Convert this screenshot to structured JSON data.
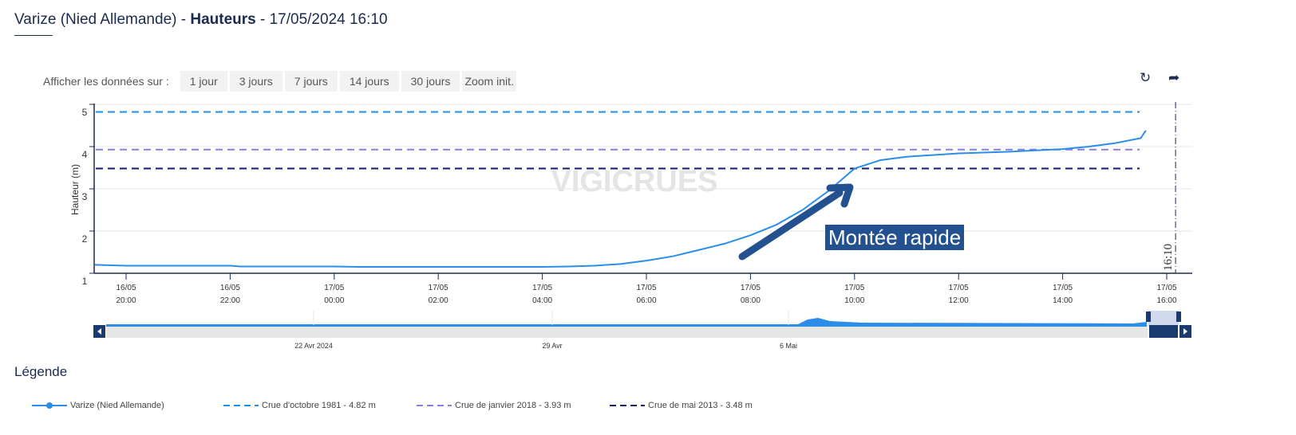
{
  "header": {
    "station": "Varize (Nied Allemande) -",
    "metric": "Hauteurs",
    "datetime": "- 17/05/2024 16:10"
  },
  "range": {
    "label": "Afficher les données sur :",
    "buttons": [
      "1 jour",
      "3 jours",
      "7 jours",
      "14 jours",
      "30 jours",
      "Zoom init."
    ]
  },
  "toolbar": {
    "refresh_icon": "refresh-icon",
    "share_icon": "share-arrow-icon"
  },
  "annotation": "Montée rapide",
  "watermark": "VIGICRUES",
  "legend": {
    "title": "Légende",
    "items": [
      "Varize (Nied Allemande)",
      "Crue d'octobre 1981 - 4.82 m",
      "Crue de janvier 2018 - 3.93 m",
      "Crue de mai 2013 - 3.48 m"
    ]
  },
  "navigator": {
    "labels": [
      "22 Avr 2024",
      "29 Avr",
      "6 Mai"
    ]
  },
  "colors": {
    "series": "#2a8ee8",
    "c1981": "#1e90e8",
    "c2018": "#8a7fe0",
    "c2013": "#14186e",
    "axis": "#1b2a4e"
  },
  "chart_data": {
    "type": "line",
    "ylabel": "Hauteur (m)",
    "ylim": [
      1,
      5
    ],
    "yticks": [
      "1",
      "2",
      "3",
      "4",
      "5"
    ],
    "xticks": [
      {
        "h": 20,
        "l1": "16/05",
        "l2": "20:00"
      },
      {
        "h": 22,
        "l1": "16/05",
        "l2": "22:00"
      },
      {
        "h": 24,
        "l1": "17/05",
        "l2": "00:00"
      },
      {
        "h": 26,
        "l1": "17/05",
        "l2": "02:00"
      },
      {
        "h": 28,
        "l1": "17/05",
        "l2": "04:00"
      },
      {
        "h": 30,
        "l1": "17/05",
        "l2": "06:00"
      },
      {
        "h": 32,
        "l1": "17/05",
        "l2": "08:00"
      },
      {
        "h": 34,
        "l1": "17/05",
        "l2": "10:00"
      },
      {
        "h": 36,
        "l1": "17/05",
        "l2": "12:00"
      },
      {
        "h": 38,
        "l1": "17/05",
        "l2": "14:00"
      },
      {
        "h": 40,
        "l1": "17/05",
        "l2": "16:00"
      }
    ],
    "x_hours_since_16_05_00h": [
      19.4,
      20,
      22,
      22.2,
      24,
      24.5,
      26,
      28,
      28.5,
      29,
      29.5,
      30,
      30.5,
      31,
      31.5,
      32,
      32.5,
      33,
      33.5,
      34,
      34.5,
      35,
      35.5,
      36,
      37,
      38,
      38.5,
      39,
      39.5,
      39.6
    ],
    "series": [
      {
        "name": "Varize (Nied Allemande)",
        "values": [
          1.2,
          1.18,
          1.18,
          1.16,
          1.16,
          1.15,
          1.15,
          1.15,
          1.16,
          1.18,
          1.22,
          1.3,
          1.4,
          1.55,
          1.7,
          1.9,
          2.15,
          2.5,
          2.95,
          3.48,
          3.68,
          3.76,
          3.8,
          3.84,
          3.88,
          3.94,
          4.0,
          4.08,
          4.2,
          4.38
        ]
      }
    ],
    "thresholds": [
      {
        "name": "Crue d'octobre 1981",
        "value": 4.82
      },
      {
        "name": "Crue de janvier 2018",
        "value": 3.93
      },
      {
        "name": "Crue de mai 2013",
        "value": 3.48
      }
    ],
    "now_marker": {
      "h": 40.17,
      "label": "16:10"
    }
  }
}
